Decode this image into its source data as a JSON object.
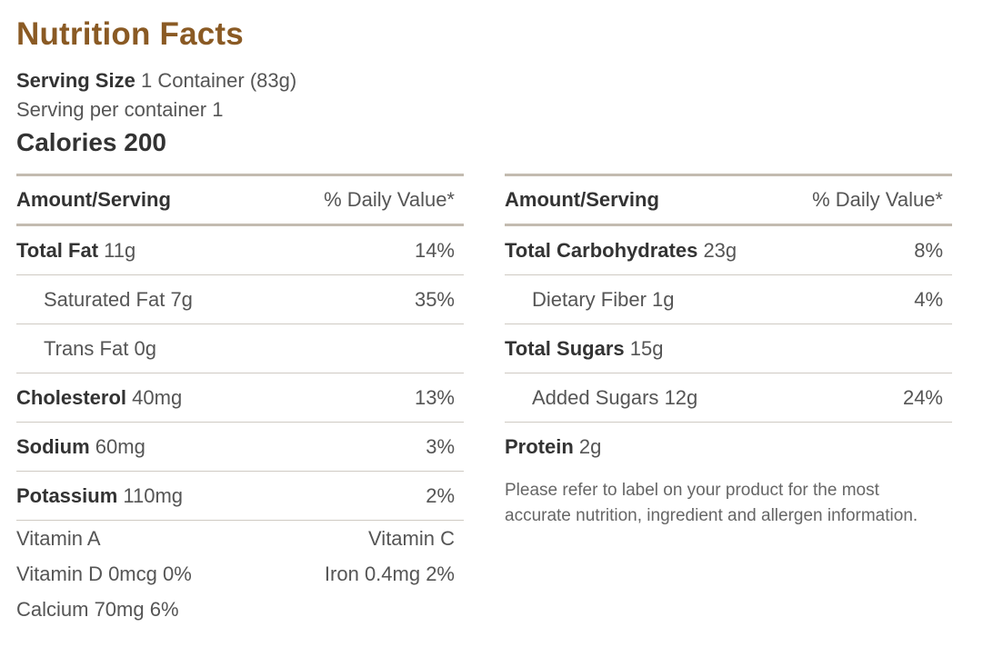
{
  "title": "Nutrition Facts",
  "serving": {
    "size_label": "Serving Size",
    "size_value": "1 Container (83g)",
    "per_container": "Serving per container 1"
  },
  "calories": "Calories 200",
  "header": {
    "amount": "Amount/Serving",
    "daily_value": "% Daily Value*"
  },
  "left_rows": [
    {
      "name": "Total Fat",
      "amount": "11g",
      "pct": "14%"
    },
    {
      "name": "Saturated Fat",
      "amount": "7g",
      "pct": "35%"
    },
    {
      "name": "Trans Fat",
      "amount": "0g",
      "pct": ""
    },
    {
      "name": "Cholesterol",
      "amount": "40mg",
      "pct": "13%"
    },
    {
      "name": "Sodium",
      "amount": "60mg",
      "pct": "3%"
    },
    {
      "name": "Potassium",
      "amount": "110mg",
      "pct": "2%"
    }
  ],
  "vitamins": {
    "vitamin_a": "Vitamin A",
    "vitamin_c": "Vitamin C",
    "vitamin_d": "Vitamin D 0mcg 0%",
    "iron": "Iron 0.4mg 2%",
    "calcium": "Calcium 70mg 6%"
  },
  "right_rows": [
    {
      "name": "Total Carbohydrates",
      "amount": "23g",
      "pct": "8%"
    },
    {
      "name": "Dietary Fiber",
      "amount": "1g",
      "pct": "4%"
    },
    {
      "name": "Total Sugars",
      "amount": "15g",
      "pct": ""
    },
    {
      "name": "Added Sugars",
      "amount": "12g",
      "pct": "24%"
    },
    {
      "name": "Protein",
      "amount": "2g",
      "pct": ""
    }
  ],
  "note": "Please refer to label on your product for the most accurate nutrition, ingredient and allergen information.",
  "colors": {
    "title": "#8a5a24",
    "rule": "#c3bbb0",
    "text": "#555555"
  }
}
